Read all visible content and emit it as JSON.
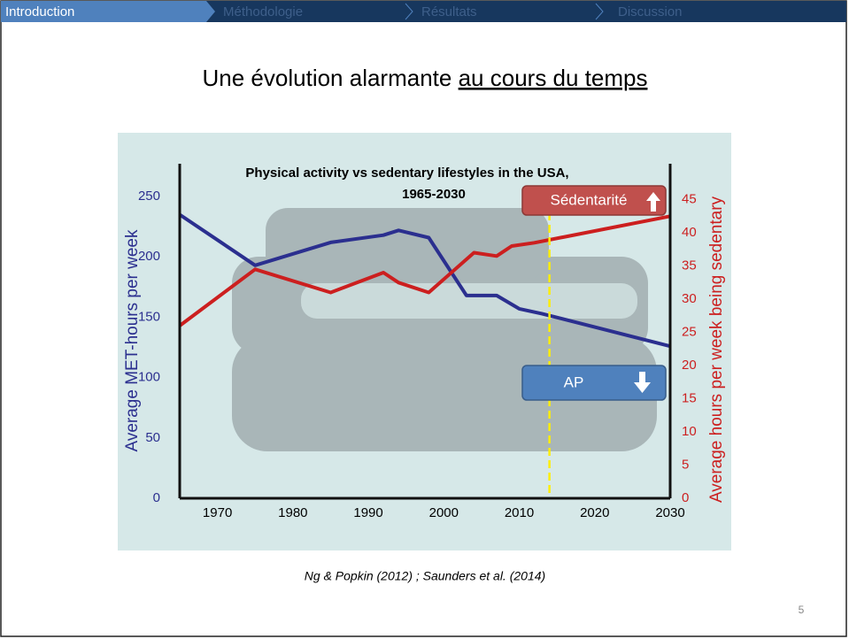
{
  "nav": [
    "Introduction",
    "Méthodologie",
    "Résultats",
    "Discussion"
  ],
  "title_plain": "Une évolution alarmante",
  "title_underlined": "au cours du temps",
  "chart_data": {
    "type": "line",
    "title": "Physical activity vs sedentary lifestyles in the USA,",
    "subtitle": "1965-2030",
    "ylabel": "Average MET-hours per week",
    "y2label": "Average hours per week being sedentary",
    "xlim": [
      1965,
      2030
    ],
    "xticks": [
      1970,
      1980,
      1990,
      2000,
      2010,
      2020,
      2030
    ],
    "ylim": [
      0,
      275
    ],
    "yticks": [
      0,
      50,
      100,
      150,
      200,
      250
    ],
    "y2lim": [
      0,
      50
    ],
    "y2ticks": [
      0,
      5,
      10,
      15,
      20,
      25,
      30,
      35,
      40,
      45
    ],
    "series": [
      {
        "color": "#2b2f8f",
        "x": [
          1965,
          1975,
          1985,
          1992,
          1994,
          1998,
          2003,
          2007,
          2010,
          2013,
          2030
        ],
        "values": [
          235,
          193,
          212,
          218,
          222,
          216,
          168,
          168,
          157,
          153,
          126
        ]
      },
      {
        "color": "#cc1f1f",
        "axis": "y2",
        "x": [
          1965,
          1975,
          1985,
          1992,
          1994,
          1998,
          2004,
          2007,
          2009,
          2012,
          2030
        ],
        "values": [
          26,
          34.5,
          31,
          34,
          32.5,
          31,
          37,
          36.5,
          38,
          38.5,
          42.5
        ]
      }
    ],
    "marker_x": 2014,
    "annotations": [
      "Sédentarité",
      "AP"
    ]
  },
  "citation": "Ng & Popkin (2012) ; Saunders et al. (2014)",
  "page_number": "5"
}
